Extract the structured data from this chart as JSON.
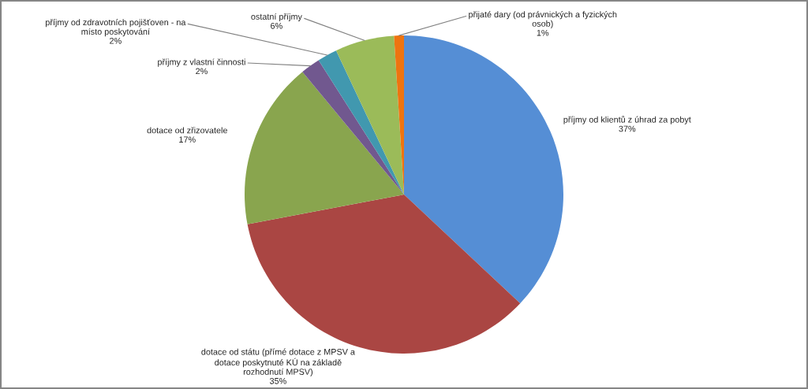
{
  "chart_data": {
    "type": "pie",
    "categories": [
      "příjmy od klientů z úhrad za pobyt",
      "dotace od státu (přímé dotace z MPSV a dotace poskytnuté KÚ na základě rozhodnutí MPSV)",
      "dotace od zřizovatele",
      "příjmy z vlastní činnosti",
      "příjmy od zdravotních pojišťoven - na místo poskytování",
      "ostatní příjmy",
      "přijaté dary (od právnických a fyzických osob)"
    ],
    "values": [
      37,
      35,
      17,
      2,
      2,
      6,
      1
    ],
    "value_labels": [
      "37%",
      "35%",
      "17%",
      "2%",
      "2%",
      "6%",
      "1%"
    ],
    "colors": [
      "#558ed5",
      "#aa4643",
      "#89a54e",
      "#71588f",
      "#4198af",
      "#9bbb59",
      "#ee7410"
    ]
  }
}
